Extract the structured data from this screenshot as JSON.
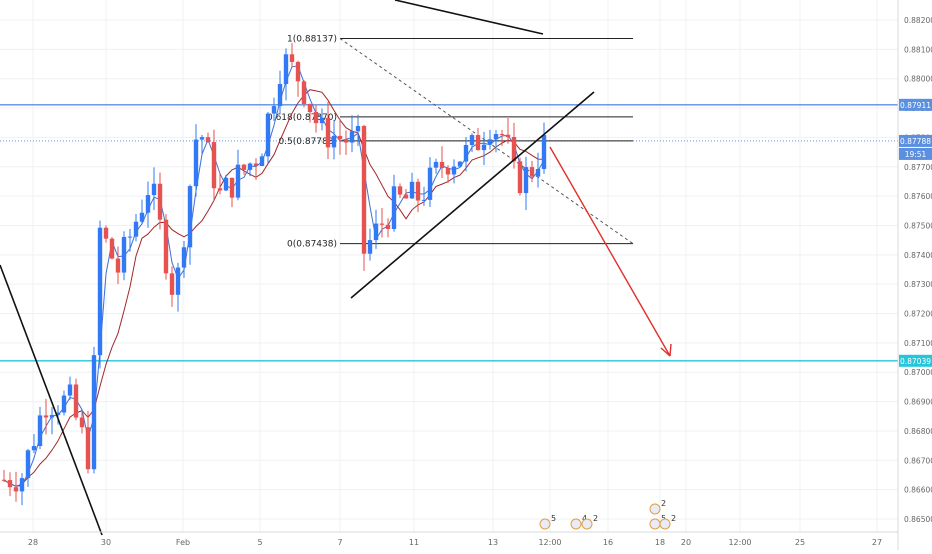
{
  "chart_data": {
    "type": "candlestick",
    "title": "",
    "y_axis": {
      "position": "right",
      "range": [
        0.8645,
        0.8825
      ],
      "tick_labels": [
        "0.88200",
        "0.88100",
        "0.88000",
        "0.87900",
        "0.87800",
        "0.87700",
        "0.87600",
        "0.87500",
        "0.87400",
        "0.87300",
        "0.87200",
        "0.87100",
        "0.87000",
        "0.86900",
        "0.86800",
        "0.86700",
        "0.86600",
        "0.86500"
      ]
    },
    "x_axis": {
      "tick_labels": [
        "28",
        "30",
        "Feb",
        "5",
        "7",
        "11",
        "13",
        "12:00",
        "16",
        "18",
        "20",
        "12:00",
        "25",
        "27"
      ]
    },
    "price_badges": [
      {
        "name": "resistance-line",
        "value": "0.87911",
        "color": "#5b8fe0"
      },
      {
        "name": "last-price",
        "value": "0.87788",
        "color": "#5b8fe0"
      },
      {
        "name": "countdown",
        "value": "19:51",
        "color": "#5b8fe0"
      },
      {
        "name": "target-level",
        "value": "0.87039",
        "color": "#26c6da"
      }
    ],
    "fibonacci": [
      {
        "label": "1(0.88137)",
        "level": 0.88137
      },
      {
        "label": "0.618(0.87870)",
        "level": 0.8787
      },
      {
        "label": "0.5(0.87788)",
        "level": 0.87788
      },
      {
        "label": "0(0.87438)",
        "level": 0.87438
      }
    ],
    "horizontal_levels": [
      {
        "value": 0.87911,
        "color": "#5b8fe0"
      },
      {
        "value": 0.87788,
        "color": "#5b8fe0",
        "style": "dotted"
      },
      {
        "value": 0.87039,
        "color": "#26c6da"
      }
    ],
    "colors": {
      "up": "#3179f5",
      "down": "#e5524f",
      "ma_fast": "#3d6fd6",
      "ma_slow": "#a0282a",
      "arrow": "#e0302e"
    },
    "event_markers": [
      "5",
      "4",
      "2",
      "2",
      "5",
      "2"
    ]
  }
}
